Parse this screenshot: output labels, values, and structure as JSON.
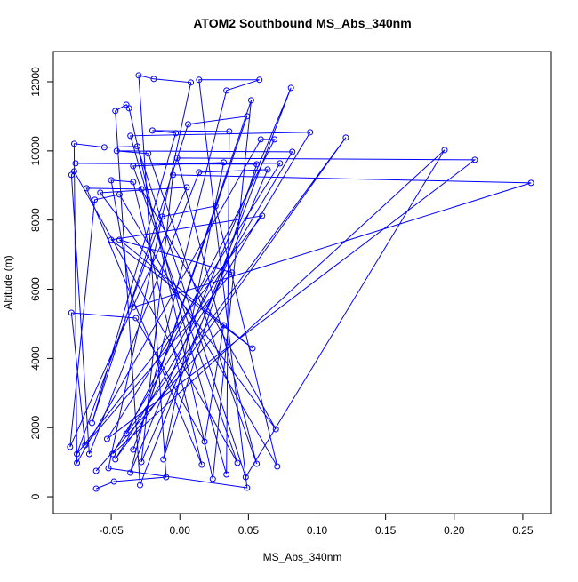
{
  "chart_data": {
    "type": "line",
    "title": "ATOM2 Southbound MS_Abs_340nm",
    "x_label": "MS_Abs_340nm",
    "y_label": "Altitude (m)",
    "color": "#0000ff",
    "markers": true,
    "xlim": [
      -0.0922,
      0.2708
    ],
    "ylim": [
      -487,
      12874
    ],
    "xticks": [
      {
        "value": -0.05,
        "label": "-0.05"
      },
      {
        "value": 0,
        "label": "0.00"
      },
      {
        "value": 0.05,
        "label": "0.05"
      },
      {
        "value": 0.1,
        "label": "0.10"
      },
      {
        "value": 0.15,
        "label": "0.15"
      },
      {
        "value": 0.2,
        "label": "0.20"
      },
      {
        "value": 0.25,
        "label": "0.25"
      }
    ],
    "yticks": [
      0,
      2000,
      4000,
      6000,
      8000,
      10000,
      12000
    ],
    "x": [
      -0.061,
      -0.048,
      -0.01,
      -0.03,
      -0.019,
      0.008,
      -0.052,
      0.049,
      0.014,
      0.058,
      0.034,
      -0.036,
      0.081,
      -0.029,
      -0.047,
      -0.039,
      -0.037,
      0.024,
      0.052,
      -0.034,
      0.049,
      0.006,
      -0.064,
      -0.003,
      -0.02,
      0.036,
      0.034,
      -0.036,
      0.095,
      -0.047,
      0.121,
      -0.039,
      0.069,
      0.059,
      -0.075,
      -0.077,
      -0.055,
      -0.031,
      0.048,
      0.193,
      -0.049,
      0.082,
      -0.046,
      -0.023,
      0.056,
      -0.002,
      0.215,
      -0.053,
      0.073,
      -0.076,
      0.056,
      -0.012,
      0.032,
      -0.034,
      0.042,
      -0.077,
      -0.079,
      -0.066,
      0.014,
      0.064,
      -0.028,
      -0.005,
      0.256,
      -0.034,
      -0.05,
      -0.034,
      0.016,
      -0.068,
      -0.028,
      0.07,
      -0.058,
      0.005,
      -0.08,
      -0.062,
      -0.044,
      0.071,
      0.026,
      -0.013,
      -0.075,
      0.06,
      -0.05,
      0.053,
      -0.044,
      0.038,
      -0.069,
      -0.079,
      -0.032,
      0.018,
      0.032,
      -0.061
    ],
    "values": [
      231,
      437,
      566,
      12185,
      12082,
      11979,
      823,
      257,
      12057,
      12057,
      11748,
      694,
      11825,
      334,
      11157,
      11337,
      11234,
      514,
      11465,
      1362,
      11003,
      10771,
      2134,
      10514,
      10591,
      10565,
      643,
      10437,
      10540,
      1080,
      10386,
      1825,
      10334,
      10334,
      977,
      10206,
      10103,
      10129,
      566,
      10026,
      1234,
      9974,
      10000,
      9923,
      951,
      9794,
      9743,
      1671,
      9640,
      9640,
      9614,
      1080,
      9666,
      9563,
      977,
      9409,
      9306,
      1234,
      9383,
      9460,
      1003,
      9306,
      9075,
      5476,
      9152,
      9100,
      925,
      8920,
      8895,
      1954,
      8792,
      8946,
      1440,
      8586,
      8740,
      874,
      8406,
      8098,
      1234,
      8123,
      7429,
      4293,
      7429,
      6478,
      1491,
      5321,
      5167,
      1594,
      4961,
      746
    ]
  }
}
